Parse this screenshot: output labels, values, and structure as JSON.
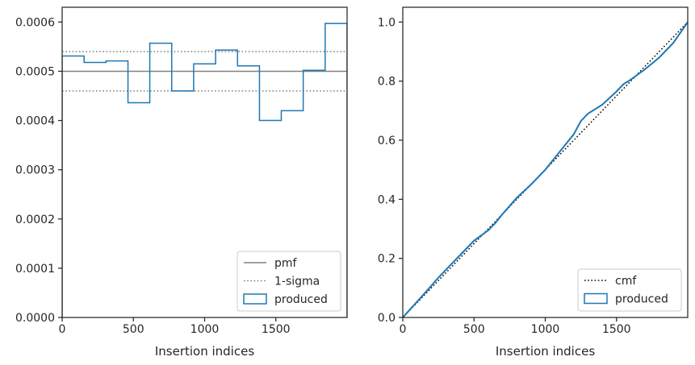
{
  "chart_data": [
    {
      "type": "line",
      "subtype": "step-histogram",
      "xlabel": "Insertion indices",
      "ylabel": "",
      "xlim": [
        0,
        2000
      ],
      "ylim": [
        0,
        0.00063
      ],
      "xticks": [
        0,
        500,
        1000,
        1500
      ],
      "xtick_labels": [
        "0",
        "500",
        "1000",
        "1500"
      ],
      "yticks": [
        0,
        0.0001,
        0.0002,
        0.0003,
        0.0004,
        0.0005,
        0.0006
      ],
      "ytick_labels": [
        "0.0000",
        "0.0001",
        "0.0002",
        "0.0003",
        "0.0004",
        "0.0005",
        "0.0006"
      ],
      "grid": false,
      "legend_position": "bottom-right",
      "series": [
        {
          "name": "pmf",
          "kind": "hline",
          "color": "#808080",
          "style": "solid",
          "y": 0.0005
        },
        {
          "name": "1-sigma",
          "kind": "hlines",
          "color": "#808080",
          "style": "dotted",
          "y": [
            0.00046,
            0.00054
          ]
        },
        {
          "name": "produced",
          "kind": "step",
          "color": "#1f77b4",
          "style": "solid",
          "bin_edges": [
            0,
            154,
            308,
            462,
            615,
            769,
            923,
            1077,
            1231,
            1385,
            1538,
            1692,
            1846,
            2000
          ],
          "values": [
            0.000531,
            0.000518,
            0.000521,
            0.000436,
            0.000557,
            0.00046,
            0.000515,
            0.000543,
            0.000511,
            0.0004,
            0.00042,
            0.000502,
            0.000597
          ]
        }
      ]
    },
    {
      "type": "line",
      "xlabel": "Insertion indices",
      "ylabel": "",
      "xlim": [
        0,
        2000
      ],
      "ylim": [
        0,
        1.05
      ],
      "xticks": [
        0,
        500,
        1000,
        1500
      ],
      "xtick_labels": [
        "0",
        "500",
        "1000",
        "1500"
      ],
      "yticks": [
        0,
        0.2,
        0.4,
        0.6,
        0.8,
        1.0
      ],
      "ytick_labels": [
        "0.0",
        "0.2",
        "0.4",
        "0.6",
        "0.8",
        "1.0"
      ],
      "grid": false,
      "legend_position": "bottom-right",
      "series": [
        {
          "name": "cmf",
          "color": "#000000",
          "style": "dotted",
          "x": [
            0,
            2000
          ],
          "y": [
            0,
            1.0
          ]
        },
        {
          "name": "produced",
          "color": "#1f77b4",
          "style": "solid",
          "x": [
            0,
            150,
            250,
            300,
            400,
            500,
            600,
            650,
            700,
            800,
            900,
            1000,
            1050,
            1100,
            1200,
            1250,
            1300,
            1400,
            1500,
            1550,
            1600,
            1700,
            1800,
            1900,
            2000
          ],
          "y": [
            0,
            0.08,
            0.135,
            0.16,
            0.21,
            0.26,
            0.295,
            0.32,
            0.35,
            0.405,
            0.45,
            0.5,
            0.53,
            0.56,
            0.62,
            0.665,
            0.69,
            0.72,
            0.765,
            0.79,
            0.805,
            0.84,
            0.88,
            0.93,
            1.0
          ]
        }
      ]
    }
  ]
}
